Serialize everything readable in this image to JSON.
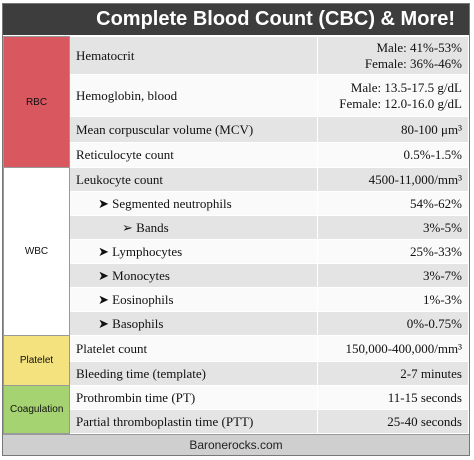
{
  "header": {
    "title": "Complete Blood Count (CBC) & More!"
  },
  "groups": [
    {
      "label": "RBC",
      "rows": [
        {
          "test": "Hematocrit",
          "range": [
            "Male: 41%-53%",
            "Female: 36%-46%"
          ]
        },
        {
          "test": "Hemoglobin, blood",
          "range": [
            "Male: 13.5-17.5 g/dL",
            "Female: 12.0-16.0 g/dL"
          ]
        },
        {
          "test": "Mean corpuscular volume (MCV)",
          "range": [
            "80-100 μm³"
          ]
        },
        {
          "test": "Reticulocyte count",
          "range": [
            "0.5%-1.5%"
          ]
        }
      ]
    },
    {
      "label": "WBC",
      "rows": [
        {
          "test": "Leukocyte count",
          "range": [
            "4500-11,000/mm³"
          ]
        },
        {
          "test": "➤ Segmented neutrophils",
          "range": [
            "54%-62%"
          ]
        },
        {
          "test": "➢ Bands",
          "range": [
            "3%-5%"
          ]
        },
        {
          "test": "➤ Lymphocytes",
          "range": [
            "25%-33%"
          ]
        },
        {
          "test": "➤ Monocytes",
          "range": [
            "3%-7%"
          ]
        },
        {
          "test": "➤ Eosinophils",
          "range": [
            "1%-3%"
          ]
        },
        {
          "test": "➤ Basophils",
          "range": [
            "0%-0.75%"
          ]
        }
      ]
    },
    {
      "label": "Platelet",
      "rows": [
        {
          "test": "Platelet count",
          "range": [
            "150,000-400,000/mm³"
          ]
        },
        {
          "test": "Bleeding time (template)",
          "range": [
            "2-7 minutes"
          ]
        }
      ]
    },
    {
      "label": "Coagulation",
      "rows": [
        {
          "test": "Prothrombin time (PT)",
          "range": [
            "11-15 seconds"
          ]
        },
        {
          "test": "Partial thromboplastin time (PTT)",
          "range": [
            "25-40 seconds"
          ]
        }
      ]
    }
  ],
  "footer": "Baronerocks.com"
}
